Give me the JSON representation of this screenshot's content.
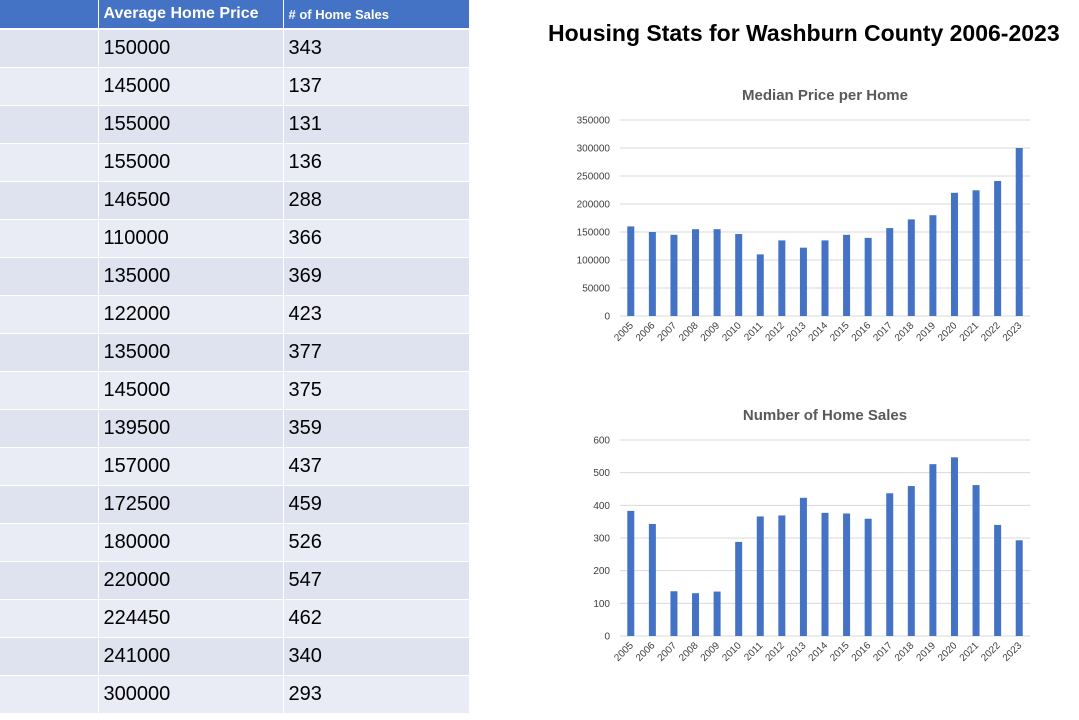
{
  "table": {
    "headers": [
      "",
      "Average Home Price",
      "# of Home Sales"
    ],
    "rows": [
      [
        "",
        "150000",
        "343"
      ],
      [
        "",
        "145000",
        "137"
      ],
      [
        "",
        "155000",
        "131"
      ],
      [
        "",
        "155000",
        "136"
      ],
      [
        "",
        "146500",
        "288"
      ],
      [
        "",
        "110000",
        "366"
      ],
      [
        "",
        "135000",
        "369"
      ],
      [
        "",
        "122000",
        "423"
      ],
      [
        "",
        "135000",
        "377"
      ],
      [
        "",
        "145000",
        "375"
      ],
      [
        "",
        "139500",
        "359"
      ],
      [
        "",
        "157000",
        "437"
      ],
      [
        "",
        "172500",
        "459"
      ],
      [
        "",
        "180000",
        "526"
      ],
      [
        "",
        "220000",
        "547"
      ],
      [
        "",
        "224450",
        "462"
      ],
      [
        "",
        "241000",
        "340"
      ],
      [
        "",
        "300000",
        "293"
      ]
    ]
  },
  "main_title": "Housing Stats for Washburn County 2006-2023",
  "colors": {
    "bar": "#4472c4",
    "header": "#4472c4"
  },
  "chart_data": [
    {
      "type": "bar",
      "title": "Median Price per Home",
      "xlabel": "",
      "ylabel": "",
      "ylim": [
        0,
        350000
      ],
      "yticks": [
        0,
        50000,
        100000,
        150000,
        200000,
        250000,
        300000,
        350000
      ],
      "grid": true,
      "categories": [
        "2005",
        "2006",
        "2007",
        "2008",
        "2009",
        "2010",
        "2011",
        "2012",
        "2013",
        "2014",
        "2015",
        "2016",
        "2017",
        "2018",
        "2019",
        "2020",
        "2021",
        "2022",
        "2023"
      ],
      "values": [
        160000,
        150000,
        145000,
        155000,
        155000,
        146500,
        110000,
        135000,
        122000,
        135000,
        145000,
        139500,
        157000,
        172500,
        180000,
        220000,
        224450,
        241000,
        300000
      ]
    },
    {
      "type": "bar",
      "title": "Number of Home Sales",
      "xlabel": "",
      "ylabel": "",
      "ylim": [
        0,
        600
      ],
      "yticks": [
        0,
        100,
        200,
        300,
        400,
        500,
        600
      ],
      "grid": true,
      "categories": [
        "2005",
        "2006",
        "2007",
        "2008",
        "2009",
        "2010",
        "2011",
        "2012",
        "2013",
        "2014",
        "2015",
        "2016",
        "2017",
        "2018",
        "2019",
        "2020",
        "2021",
        "2022",
        "2023"
      ],
      "values": [
        383,
        343,
        137,
        131,
        136,
        288,
        366,
        369,
        423,
        377,
        375,
        359,
        437,
        459,
        526,
        547,
        462,
        340,
        293
      ]
    }
  ]
}
